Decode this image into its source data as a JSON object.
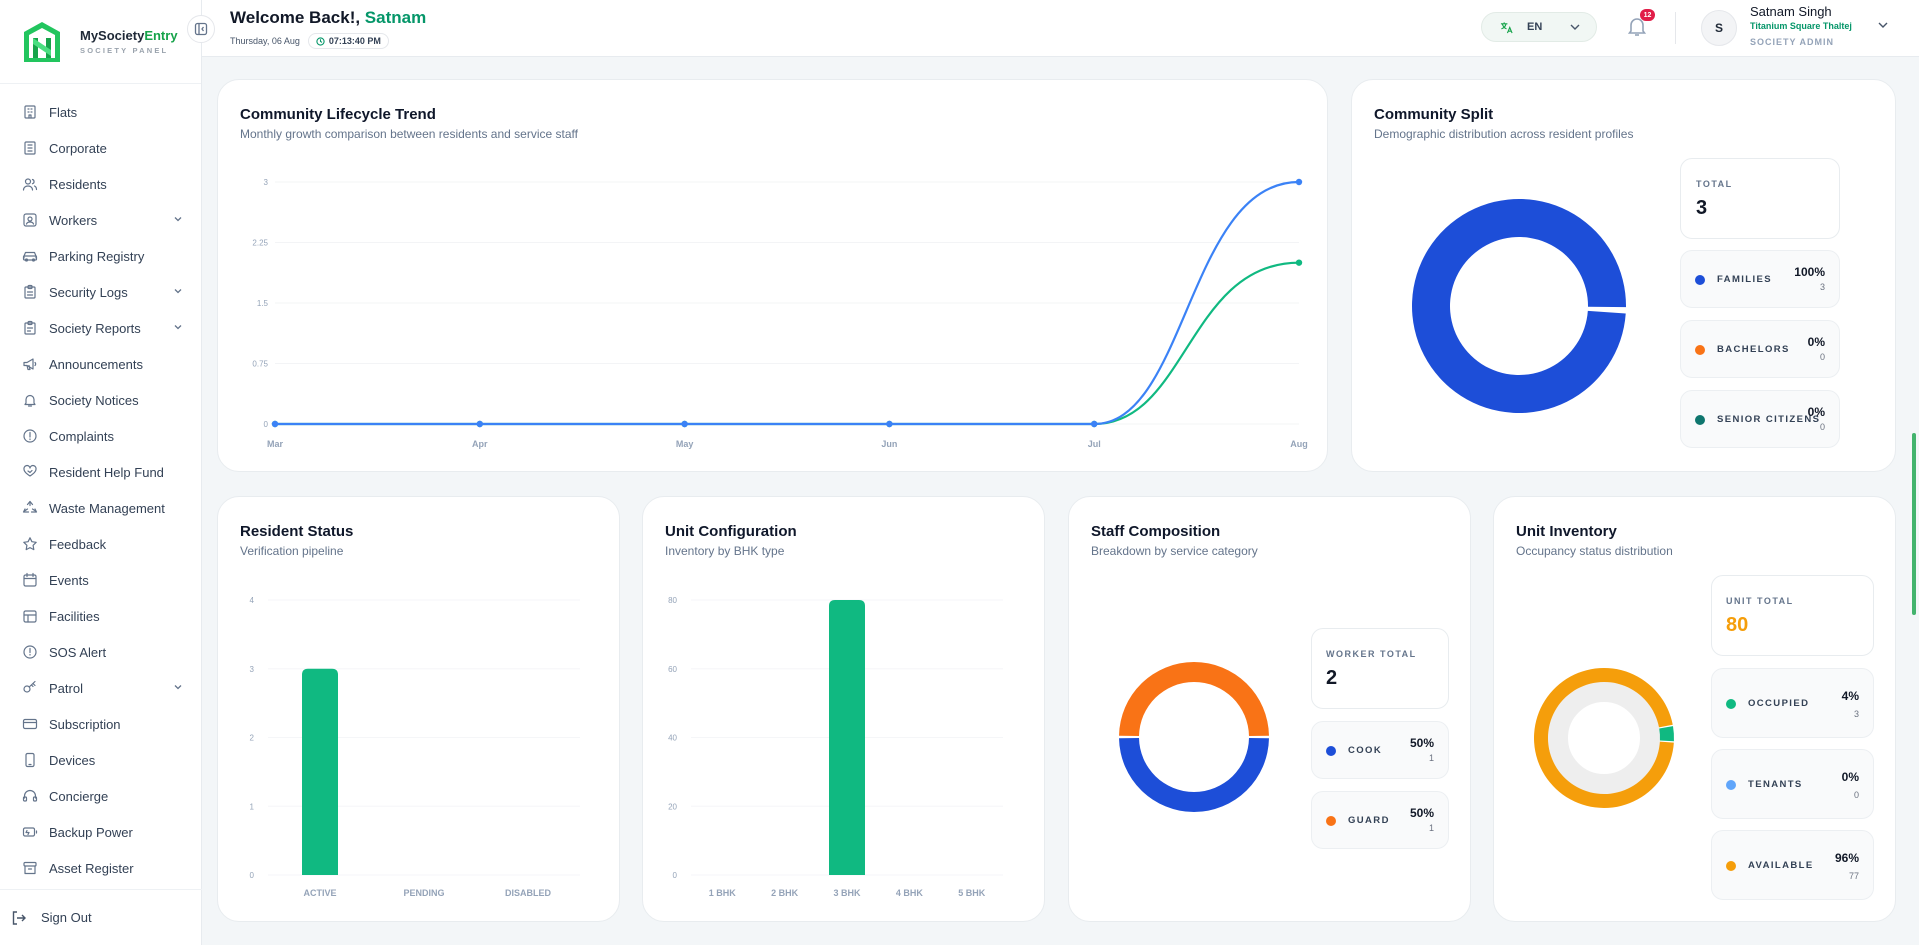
{
  "brand": {
    "title_main": "MySociety",
    "title_accent": "Entry",
    "subtitle": "SOCIETY PANEL"
  },
  "sidebar": {
    "items": [
      {
        "label": "Flats",
        "icon": "building-icon",
        "expandable": false
      },
      {
        "label": "Corporate",
        "icon": "office-icon",
        "expandable": false
      },
      {
        "label": "Residents",
        "icon": "users-icon",
        "expandable": false
      },
      {
        "label": "Workers",
        "icon": "id-card-icon",
        "expandable": true
      },
      {
        "label": "Parking Registry",
        "icon": "car-icon",
        "expandable": false
      },
      {
        "label": "Security Logs",
        "icon": "clipboard-icon",
        "expandable": true
      },
      {
        "label": "Society Reports",
        "icon": "report-icon",
        "expandable": true
      },
      {
        "label": "Announcements",
        "icon": "megaphone-icon",
        "expandable": false
      },
      {
        "label": "Society Notices",
        "icon": "bell-icon",
        "expandable": false
      },
      {
        "label": "Complaints",
        "icon": "alert-circle-icon",
        "expandable": false
      },
      {
        "label": "Resident Help Fund",
        "icon": "heart-hand-icon",
        "expandable": false
      },
      {
        "label": "Waste Management",
        "icon": "recycle-icon",
        "expandable": false
      },
      {
        "label": "Feedback",
        "icon": "star-icon",
        "expandable": false
      },
      {
        "label": "Events",
        "icon": "calendar-icon",
        "expandable": false
      },
      {
        "label": "Facilities",
        "icon": "facility-icon",
        "expandable": false
      },
      {
        "label": "SOS Alert",
        "icon": "sos-icon",
        "expandable": false
      },
      {
        "label": "Patrol",
        "icon": "key-icon",
        "expandable": true
      },
      {
        "label": "Subscription",
        "icon": "card-icon",
        "expandable": false
      },
      {
        "label": "Devices",
        "icon": "phone-icon",
        "expandable": false
      },
      {
        "label": "Concierge",
        "icon": "headset-icon",
        "expandable": false
      },
      {
        "label": "Backup Power",
        "icon": "battery-icon",
        "expandable": false
      },
      {
        "label": "Asset Register",
        "icon": "archive-icon",
        "expandable": false
      }
    ],
    "sign_out": "Sign Out"
  },
  "header": {
    "welcome_prefix": "Welcome Back!, ",
    "user_first": "Satnam",
    "date": "Thursday, 06 Aug",
    "time": "07:13:40 PM",
    "language": "EN",
    "notification_count": "12",
    "profile": {
      "initial": "S",
      "name": "Satnam Singh",
      "society": "Titanium Square Thaltej",
      "role": "SOCIETY ADMIN"
    }
  },
  "colors": {
    "green": "#10b981",
    "blue": "#1d4ed8",
    "line_blue": "#3b82f6",
    "orange": "#f97316",
    "amber": "#f59e0b",
    "teal": "#0f766e",
    "light_blue": "#60a5fa"
  },
  "lifecycle": {
    "title": "Community Lifecycle Trend",
    "subtitle": "Monthly growth comparison between residents and service staff",
    "chart_data": {
      "type": "line",
      "x": [
        "Mar",
        "Apr",
        "May",
        "Jun",
        "Jul",
        "Aug"
      ],
      "series": [
        {
          "values": [
            0,
            0,
            0,
            0,
            0,
            3
          ],
          "color": "#3b82f6"
        },
        {
          "values": [
            0,
            0,
            0,
            0,
            0,
            2
          ],
          "color": "#10b981"
        }
      ],
      "yticks": [
        "0",
        "0.75",
        "1.5",
        "2.25",
        "3"
      ],
      "ylim": [
        0,
        3
      ]
    }
  },
  "split": {
    "title": "Community Split",
    "subtitle": "Demographic distribution across resident profiles",
    "total_label": "TOTAL",
    "total_value": "3",
    "legend": [
      {
        "name": "FAMILIES",
        "pct": "100%",
        "count": "3",
        "color": "#1d4ed8"
      },
      {
        "name": "BACHELORS",
        "pct": "0%",
        "count": "0",
        "color": "#f97316"
      },
      {
        "name": "SENIOR CITIZENS",
        "pct": "0%",
        "count": "0",
        "color": "#0f766e"
      }
    ],
    "chart_data": {
      "type": "pie",
      "labels": [
        "Families",
        "Bachelors",
        "Senior Citizens"
      ],
      "values": [
        3,
        0,
        0
      ]
    }
  },
  "resident_status": {
    "title": "Resident Status",
    "subtitle": "Verification pipeline",
    "chart_data": {
      "type": "bar",
      "categories": [
        "ACTIVE",
        "PENDING",
        "DISABLED"
      ],
      "values": [
        3,
        0,
        0
      ],
      "yticks": [
        "0",
        "1",
        "2",
        "3",
        "4"
      ],
      "ylim": [
        0,
        4
      ]
    }
  },
  "unit_config": {
    "title": "Unit Configuration",
    "subtitle": "Inventory by BHK type",
    "chart_data": {
      "type": "bar",
      "categories": [
        "1 BHK",
        "2 BHK",
        "3 BHK",
        "4 BHK",
        "5 BHK"
      ],
      "values": [
        0,
        0,
        80,
        0,
        0
      ],
      "yticks": [
        "0",
        "20",
        "40",
        "60",
        "80"
      ],
      "ylim": [
        0,
        80
      ]
    }
  },
  "staff": {
    "title": "Staff Composition",
    "subtitle": "Breakdown by service category",
    "total_label": "WORKER TOTAL",
    "total_value": "2",
    "legend": [
      {
        "name": "COOK",
        "pct": "50%",
        "count": "1",
        "color": "#1d4ed8"
      },
      {
        "name": "GUARD",
        "pct": "50%",
        "count": "1",
        "color": "#f97316"
      }
    ],
    "chart_data": {
      "type": "pie",
      "labels": [
        "Cook",
        "Guard"
      ],
      "values": [
        1,
        1
      ]
    }
  },
  "inventory": {
    "title": "Unit Inventory",
    "subtitle": "Occupancy status distribution",
    "total_label": "UNIT TOTAL",
    "total_value": "80",
    "legend": [
      {
        "name": "OCCUPIED",
        "pct": "4%",
        "count": "3",
        "color": "#10b981"
      },
      {
        "name": "TENANTS",
        "pct": "0%",
        "count": "0",
        "color": "#60a5fa"
      },
      {
        "name": "AVAILABLE",
        "pct": "96%",
        "count": "77",
        "color": "#f59e0b"
      }
    ],
    "chart_data": {
      "type": "pie",
      "labels": [
        "Occupied",
        "Tenants",
        "Available"
      ],
      "values": [
        3,
        0,
        77
      ]
    }
  }
}
